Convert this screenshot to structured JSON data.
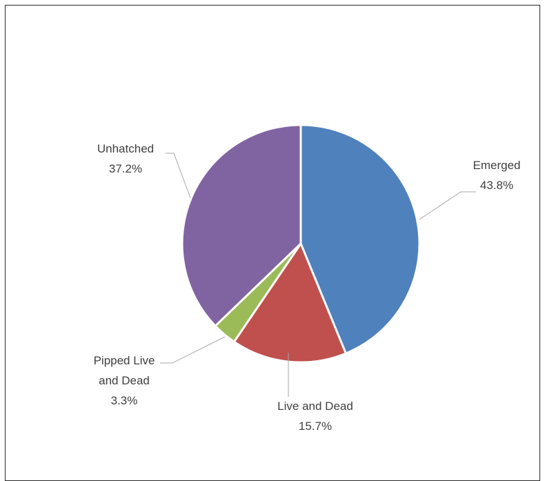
{
  "chart_data": {
    "type": "pie",
    "title": "",
    "slices": [
      {
        "name": "Emerged",
        "value": 43.8,
        "label": "43.8%",
        "color": "#4F81BD"
      },
      {
        "name": "Live and Dead",
        "value": 15.7,
        "label": "15.7%",
        "color": "#C0504D"
      },
      {
        "name": "Pipped Live and Dead",
        "value": 3.3,
        "label": "3.3%",
        "color": "#9BBB59"
      },
      {
        "name": "Unhatched",
        "value": 37.2,
        "label": "37.2%",
        "color": "#8064A2"
      }
    ],
    "legend": "none"
  },
  "labels": {
    "emerged_name": "Emerged",
    "emerged_pct": "43.8%",
    "livedead_name": "Live and Dead",
    "livedead_pct": "15.7%",
    "pipped_line1": "Pipped Live",
    "pipped_line2": "and Dead",
    "pipped_pct": "3.3%",
    "unhatched_name": "Unhatched",
    "unhatched_pct": "37.2%"
  }
}
